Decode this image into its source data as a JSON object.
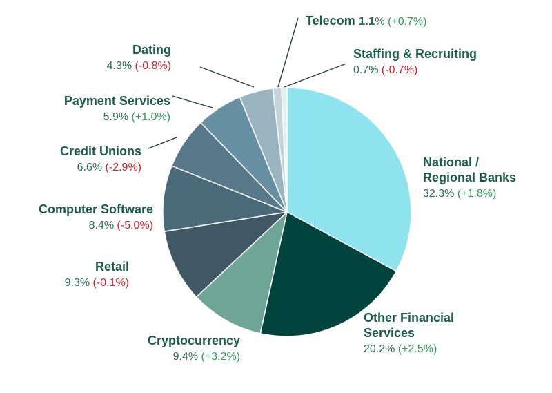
{
  "chart_data": {
    "type": "pie",
    "slices": [
      {
        "name": "National / Regional Banks",
        "name_lines": [
          "National /",
          "Regional Banks"
        ],
        "value": 32.3,
        "value_label": "32.3%",
        "change": "(+1.8%)",
        "change_sign": "pos",
        "color": "#8fe3ee"
      },
      {
        "name": "Other Financial Services",
        "name_lines": [
          "Other Financial",
          "Services"
        ],
        "value": 20.2,
        "value_label": "20.2%",
        "change": "(+2.5%)",
        "change_sign": "pos",
        "color": "#00443d"
      },
      {
        "name": "Cryptocurrency",
        "name_lines": [
          "Cryptocurrency"
        ],
        "value": 9.4,
        "value_label": "9.4%",
        "change": "(+3.2%)",
        "change_sign": "pos",
        "color": "#6fa595"
      },
      {
        "name": "Retail",
        "name_lines": [
          "Retail"
        ],
        "value": 9.3,
        "value_label": "9.3%",
        "change": "(-0.1%)",
        "change_sign": "neg",
        "color": "#3f5864"
      },
      {
        "name": "Computer Software",
        "name_lines": [
          "Computer Software"
        ],
        "value": 8.4,
        "value_label": "8.4%",
        "change": "(-5.0%)",
        "change_sign": "neg",
        "color": "#4b6a79"
      },
      {
        "name": "Credit Unions",
        "name_lines": [
          "Credit Unions"
        ],
        "value": 6.6,
        "value_label": "6.6%",
        "change": "(-2.9%)",
        "change_sign": "neg",
        "color": "#57798a"
      },
      {
        "name": "Payment Services",
        "name_lines": [
          "Payment Services"
        ],
        "value": 5.9,
        "value_label": "5.9%",
        "change": "(+1.0%)",
        "change_sign": "pos",
        "color": "#6690a2"
      },
      {
        "name": "Dating",
        "name_lines": [
          "Dating"
        ],
        "value": 4.3,
        "value_label": "4.3%",
        "change": "(-0.8%)",
        "change_sign": "neg",
        "color": "#9ab5c0"
      },
      {
        "name": "Telecom",
        "name_lines": [
          "Telecom"
        ],
        "value": 1.1,
        "value_label": "1.1%",
        "change": "(+0.7%)",
        "change_sign": "pos",
        "color": "#c4d5da"
      },
      {
        "name": "Staffing & Recruiting",
        "name_lines": [
          "Staffing & Recruiting"
        ],
        "value": 0.7,
        "value_label": "0.7%",
        "change": "(-0.7%)",
        "change_sign": "neg",
        "color": "#e3eef0"
      }
    ],
    "start_angle_deg": 0,
    "direction": "clockwise"
  }
}
